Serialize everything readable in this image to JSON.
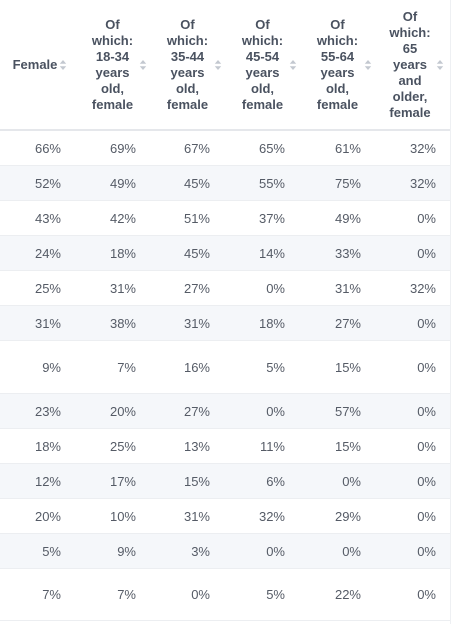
{
  "table": {
    "columns": [
      {
        "label": "Female",
        "layout": "wide"
      },
      {
        "label": "Of which: 18-34 years old, female",
        "layout": "narrow"
      },
      {
        "label": "Of which: 35-44 years old, female",
        "layout": "narrow"
      },
      {
        "label": "Of which: 45-54 years old, female",
        "layout": "narrow"
      },
      {
        "label": "Of which: 55-64 years old, female",
        "layout": "narrow"
      },
      {
        "label": "Of which: 65 years and older, female",
        "layout": "narrow"
      }
    ],
    "rows": [
      [
        "66%",
        "69%",
        "67%",
        "65%",
        "61%",
        "32%"
      ],
      [
        "52%",
        "49%",
        "45%",
        "55%",
        "75%",
        "32%"
      ],
      [
        "43%",
        "42%",
        "51%",
        "37%",
        "49%",
        "0%"
      ],
      [
        "24%",
        "18%",
        "45%",
        "14%",
        "33%",
        "0%"
      ],
      [
        "25%",
        "31%",
        "27%",
        "0%",
        "31%",
        "32%"
      ],
      [
        "31%",
        "38%",
        "31%",
        "18%",
        "27%",
        "0%"
      ],
      [
        "9%",
        "7%",
        "16%",
        "5%",
        "15%",
        "0%"
      ],
      [
        "23%",
        "20%",
        "27%",
        "0%",
        "57%",
        "0%"
      ],
      [
        "18%",
        "25%",
        "13%",
        "11%",
        "15%",
        "0%"
      ],
      [
        "12%",
        "17%",
        "15%",
        "6%",
        "0%",
        "0%"
      ],
      [
        "20%",
        "10%",
        "31%",
        "32%",
        "29%",
        "0%"
      ],
      [
        "5%",
        "9%",
        "3%",
        "0%",
        "0%",
        "0%"
      ],
      [
        "7%",
        "7%",
        "0%",
        "5%",
        "22%",
        "0%"
      ]
    ]
  },
  "icons": {
    "sort": "sort-icon"
  },
  "colors": {
    "header_text": "#4a5260",
    "cell_text": "#555b66",
    "row_alt_bg": "#f5f7fa",
    "border": "#eceef1",
    "sort_icon": "#c3c8d0"
  }
}
